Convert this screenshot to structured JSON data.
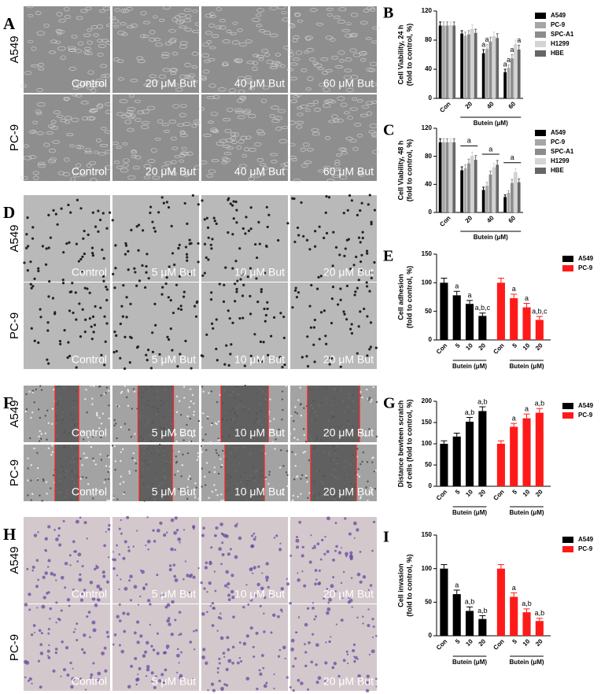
{
  "figure": {
    "image_panels": [
      {
        "label": "A",
        "rows": [
          "A549",
          "PC-9"
        ],
        "captions": [
          [
            "Control",
            "20 μM But",
            "40 μM But",
            "60 μM But"
          ],
          [
            "Control",
            "20 μM But",
            "40 μM But",
            "60 μM But"
          ]
        ]
      },
      {
        "label": "D",
        "rows": [
          "A549",
          "PC-9"
        ],
        "captions": [
          [
            "Control",
            "5 μM But",
            "10 μM But",
            "20 μM But"
          ],
          [
            "Control",
            "5 μM But",
            "10 μM But",
            "20 μM But"
          ]
        ]
      },
      {
        "label": "F",
        "rows": [
          "A549",
          "PC-9"
        ],
        "captions": [
          [
            "Control",
            "5 μM But",
            "10 μM But",
            "20 μM But"
          ],
          [
            "Control",
            "5 μM But",
            "10 μM But",
            "20 μM But"
          ]
        ]
      },
      {
        "label": "H",
        "rows": [
          "A549",
          "PC-9"
        ],
        "captions": [
          [
            "Control",
            "5 μM But",
            "10 μM But",
            "20 μM But"
          ],
          [
            "Control",
            "5 μM But",
            null,
            "20 μM But"
          ]
        ]
      }
    ]
  },
  "chart_data": [
    {
      "type": "bar",
      "label": "B",
      "layout": "grouped",
      "ylabel": [
        "Cell Viability, 24 h",
        "(fold to control, %)"
      ],
      "xlabel": "Butein (μM)",
      "categories": [
        "Con",
        "20",
        "40",
        "60"
      ],
      "ylim": [
        0,
        120
      ],
      "yticks": [
        0,
        40,
        80,
        120
      ],
      "series": [
        {
          "name": "A549",
          "color": "#000000",
          "values": [
            100,
            89,
            62,
            36
          ],
          "errors": [
            5,
            4,
            5,
            4
          ],
          "annotations": [
            null,
            null,
            "a",
            "a"
          ]
        },
        {
          "name": "PC-9",
          "color": "#a6a6a6",
          "values": [
            100,
            86,
            68,
            42
          ],
          "errors": [
            5,
            5,
            6,
            4
          ],
          "annotations": [
            null,
            null,
            "a",
            "a"
          ]
        },
        {
          "name": "SPC-A1",
          "color": "#8c8c8c",
          "values": [
            100,
            88,
            78,
            55
          ],
          "errors": [
            5,
            5,
            6,
            5
          ],
          "annotations": [
            null,
            null,
            null,
            "a"
          ]
        },
        {
          "name": "H1299",
          "color": "#d4d4d4",
          "values": [
            100,
            95,
            85,
            74
          ],
          "errors": [
            5,
            6,
            6,
            6
          ],
          "annotations": [
            null,
            null,
            null,
            null
          ]
        },
        {
          "name": "HBE",
          "color": "#666666",
          "values": [
            100,
            90,
            83,
            67
          ],
          "errors": [
            5,
            5,
            6,
            6
          ],
          "annotations": [
            null,
            null,
            null,
            "a"
          ]
        }
      ]
    },
    {
      "type": "bar",
      "label": "C",
      "layout": "grouped",
      "ylabel": [
        "Cell Viability, 48 h",
        "(fold to control, %)"
      ],
      "xlabel": "Butein (μM)",
      "categories": [
        "Con",
        "20",
        "40",
        "60"
      ],
      "ylim": [
        0,
        120
      ],
      "yticks": [
        0,
        40,
        80,
        120
      ],
      "group_annotations": [
        null,
        "a",
        "a",
        "a"
      ],
      "series": [
        {
          "name": "A549",
          "color": "#000000",
          "values": [
            100,
            60,
            32,
            22
          ],
          "errors": [
            5,
            5,
            4,
            3
          ]
        },
        {
          "name": "PC-9",
          "color": "#a6a6a6",
          "values": [
            100,
            63,
            38,
            28
          ],
          "errors": [
            5,
            5,
            5,
            3
          ]
        },
        {
          "name": "SPC-A1",
          "color": "#8c8c8c",
          "values": [
            100,
            70,
            54,
            42
          ],
          "errors": [
            5,
            6,
            5,
            5
          ]
        },
        {
          "name": "H1299",
          "color": "#d4d4d4",
          "values": [
            100,
            80,
            64,
            57
          ],
          "errors": [
            5,
            6,
            6,
            5
          ]
        },
        {
          "name": "HBE",
          "color": "#666666",
          "values": [
            100,
            75,
            68,
            43
          ],
          "errors": [
            5,
            6,
            6,
            5
          ]
        }
      ]
    },
    {
      "type": "bar",
      "label": "E",
      "layout": "by_series",
      "ylabel": [
        "Cell adhesion",
        "(fold to control, %)"
      ],
      "xlabel": "Butein (μM)",
      "categories": [
        "Con",
        "5",
        "10",
        "20"
      ],
      "ylim": [
        0,
        150
      ],
      "yticks": [
        0,
        50,
        100,
        150
      ],
      "series": [
        {
          "name": "A549",
          "color": "#000000",
          "values": [
            100,
            78,
            63,
            42
          ],
          "errors": [
            8,
            7,
            6,
            5
          ],
          "annotations": [
            null,
            "a",
            "a",
            "a,b,c"
          ]
        },
        {
          "name": "PC-9",
          "color": "#ff1a1a",
          "values": [
            100,
            73,
            57,
            35
          ],
          "errors": [
            8,
            7,
            7,
            6
          ],
          "annotations": [
            null,
            "a",
            "a",
            "a,b,c"
          ]
        }
      ]
    },
    {
      "type": "bar",
      "label": "G",
      "layout": "by_series",
      "ylabel": [
        "Distance bewteen scratch",
        "of cells (fold to control, %)"
      ],
      "xlabel": "Butein (μM)",
      "categories": [
        "Con",
        "5",
        "10",
        "20"
      ],
      "ylim": [
        0,
        200
      ],
      "yticks": [
        0,
        50,
        100,
        150,
        200
      ],
      "series": [
        {
          "name": "A549",
          "color": "#000000",
          "values": [
            100,
            117,
            152,
            177
          ],
          "errors": [
            7,
            8,
            10,
            10
          ],
          "annotations": [
            null,
            null,
            "a,b",
            "a,b"
          ]
        },
        {
          "name": "PC-9",
          "color": "#ff1a1a",
          "values": [
            100,
            140,
            160,
            173
          ],
          "errors": [
            7,
            8,
            10,
            10
          ],
          "annotations": [
            null,
            "a",
            "a",
            "a,b"
          ]
        }
      ]
    },
    {
      "type": "bar",
      "label": "I",
      "layout": "by_series",
      "ylabel": [
        "Cell invasion",
        "(fold to control, %)"
      ],
      "xlabel": "Butein (μM)",
      "categories": [
        "Con",
        "5",
        "10",
        "20"
      ],
      "ylim": [
        0,
        150
      ],
      "yticks": [
        0,
        50,
        100,
        150
      ],
      "series": [
        {
          "name": "A549",
          "color": "#000000",
          "values": [
            100,
            62,
            37,
            25
          ],
          "errors": [
            6,
            6,
            6,
            5
          ],
          "annotations": [
            null,
            "a",
            "a,b",
            "a,b"
          ]
        },
        {
          "name": "PC-9",
          "color": "#ff1a1a",
          "values": [
            100,
            58,
            35,
            22
          ],
          "errors": [
            6,
            6,
            5,
            4
          ],
          "annotations": [
            null,
            "a",
            "a,b",
            "a,b"
          ]
        }
      ]
    }
  ]
}
